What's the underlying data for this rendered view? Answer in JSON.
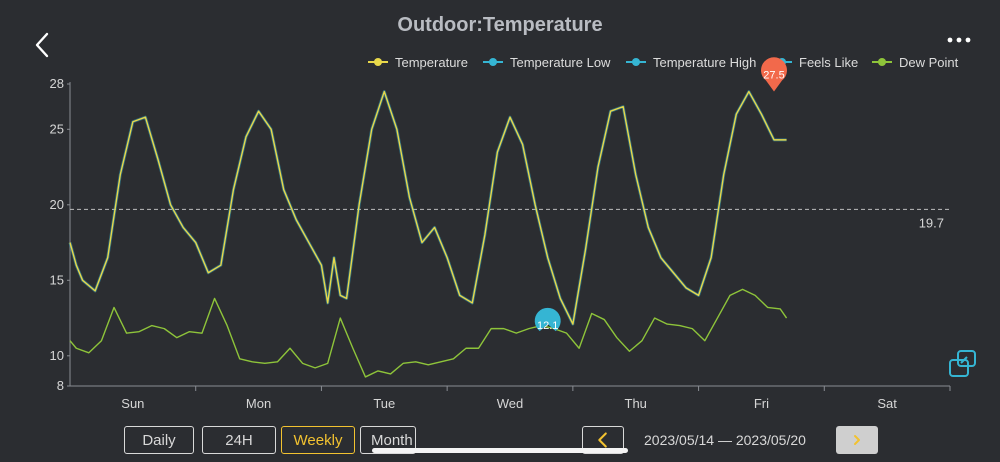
{
  "header": {
    "title": "Outdoor:Temperature"
  },
  "icons": {
    "back": "chevron-left-icon",
    "menu": "more-dots-icon",
    "scale": "resize-icon",
    "prev": "chevron-left-icon",
    "next": "chevron-right-icon"
  },
  "colors": {
    "temperature": "#e8d84a",
    "temp_low": "#35b5d3",
    "temp_high": "#35b5d3",
    "feels_like": "#35b5d3",
    "dew_point": "#8ec43a",
    "active": "#f2c230",
    "max_marker": "#f2694b",
    "min_marker": "#35b5d3"
  },
  "controls": {
    "tabs": [
      {
        "label": "Daily",
        "active": false
      },
      {
        "label": "24H",
        "active": false
      },
      {
        "label": "Weekly",
        "active": true
      },
      {
        "label": "Month",
        "active": false
      }
    ],
    "date_range": "2023/05/14 — 2023/05/20"
  },
  "chart_data": {
    "type": "line",
    "title": "Outdoor:Temperature",
    "legend_position": "top-right",
    "ylim": [
      8,
      28
    ],
    "yticks": [
      8,
      10,
      15,
      20,
      25,
      28
    ],
    "x_labels": [
      "Sun",
      "Mon",
      "Tue",
      "Wed",
      "Thu",
      "Fri",
      "Sat"
    ],
    "xlim": [
      0,
      7
    ],
    "average_line": {
      "value": 19.7,
      "label": "19.7"
    },
    "max_marker": {
      "x": 5.6,
      "value": 27.5,
      "label": "27.5"
    },
    "min_marker": {
      "x": 3.8,
      "value": 12.1,
      "label": "12.1"
    },
    "series": [
      {
        "name": "Temperature",
        "x": [
          0,
          0.05,
          0.1,
          0.2,
          0.3,
          0.4,
          0.5,
          0.6,
          0.7,
          0.8,
          0.9,
          1.0,
          1.1,
          1.2,
          1.3,
          1.4,
          1.5,
          1.6,
          1.7,
          1.8,
          1.9,
          2.0,
          2.05,
          2.1,
          2.15,
          2.2,
          2.3,
          2.4,
          2.5,
          2.6,
          2.7,
          2.8,
          2.9,
          3.0,
          3.1,
          3.2,
          3.3,
          3.4,
          3.5,
          3.6,
          3.7,
          3.8,
          3.9,
          4.0,
          4.1,
          4.2,
          4.3,
          4.4,
          4.5,
          4.6,
          4.7,
          4.8,
          4.9,
          5.0,
          5.1,
          5.2,
          5.3,
          5.4,
          5.5,
          5.6,
          5.65,
          5.7
        ],
        "values": [
          17.5,
          16,
          15,
          14.3,
          16.5,
          22,
          25.5,
          25.8,
          23,
          20,
          18.5,
          17.5,
          15.5,
          16,
          21,
          24.5,
          26.2,
          25,
          21,
          19,
          17.5,
          16,
          13.5,
          16.5,
          14,
          13.8,
          20,
          25,
          27.5,
          25,
          20.5,
          17.5,
          18.5,
          16.5,
          14,
          13.5,
          18,
          23.5,
          25.8,
          24,
          20,
          16.5,
          13.8,
          12.1,
          17,
          22.5,
          26.2,
          26.5,
          22,
          18.5,
          16.5,
          15.5,
          14.5,
          14,
          16.5,
          22,
          26,
          27.5,
          26,
          24.3,
          24.3,
          24.3
        ]
      },
      {
        "name": "Temperature Low",
        "x": [],
        "values": []
      },
      {
        "name": "Temperature High",
        "x": [],
        "values": []
      },
      {
        "name": "Feels Like",
        "x": [],
        "values": []
      },
      {
        "name": "Dew Point",
        "x": [
          0,
          0.05,
          0.15,
          0.25,
          0.35,
          0.45,
          0.55,
          0.65,
          0.75,
          0.85,
          0.95,
          1.05,
          1.15,
          1.25,
          1.35,
          1.45,
          1.55,
          1.65,
          1.75,
          1.85,
          1.95,
          2.05,
          2.15,
          2.25,
          2.35,
          2.45,
          2.55,
          2.65,
          2.75,
          2.85,
          2.95,
          3.05,
          3.15,
          3.25,
          3.35,
          3.45,
          3.55,
          3.65,
          3.75,
          3.85,
          3.95,
          4.05,
          4.15,
          4.25,
          4.35,
          4.45,
          4.55,
          4.65,
          4.75,
          4.85,
          4.95,
          5.05,
          5.15,
          5.25,
          5.35,
          5.45,
          5.55,
          5.65,
          5.7
        ],
        "values": [
          11,
          10.5,
          10.2,
          11,
          13.2,
          11.5,
          11.6,
          12,
          11.8,
          11.2,
          11.6,
          11.5,
          13.8,
          12,
          9.8,
          9.6,
          9.5,
          9.6,
          10.5,
          9.5,
          9.2,
          9.5,
          12.5,
          10.5,
          8.6,
          9,
          8.8,
          9.5,
          9.6,
          9.4,
          9.6,
          9.8,
          10.5,
          10.5,
          11.8,
          11.8,
          11.5,
          11.8,
          12,
          11.8,
          11.5,
          10.5,
          12.8,
          12.4,
          11.2,
          10.3,
          11,
          12.5,
          12.1,
          12,
          11.8,
          11,
          12.5,
          14,
          14.4,
          14,
          13.2,
          13.1,
          12.5
        ]
      }
    ]
  }
}
